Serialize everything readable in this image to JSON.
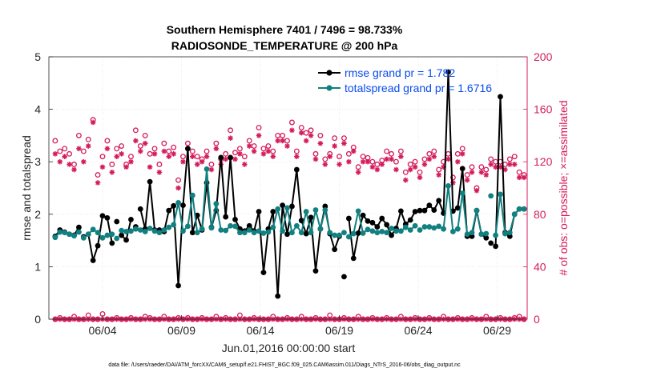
{
  "chart_data": {
    "type": "line",
    "title_line1": "Southern Hemisphere 7401 / 7496 = 98.733%",
    "title_line2": "RADIOSONDE_TEMPERATURE @ 200 hPa",
    "ylabel_left": "rmse and totalspread",
    "ylabel_right": "# of obs: o=possible; ×=assimilated",
    "xlabel": "Jun.01,2016 00:00:00 start",
    "footnote": "data file: /Users/raeder/DAI/ATM_forcXX/CAM6_setup/f.e21.FHIST_BGC.f09_025.CAM6assim.011/Diags_NTrS_2016-06/obs_diag_output.nc",
    "ylim_left": [
      0,
      5
    ],
    "ylim_right": [
      0,
      200
    ],
    "xlim": [
      0.6,
      30.9
    ],
    "yticks_left": [
      "0",
      "1",
      "2",
      "3",
      "4",
      "5"
    ],
    "yticks_right": [
      "0",
      "40",
      "80",
      "120",
      "160",
      "200"
    ],
    "x_ticks": [
      {
        "day": 4,
        "label": "06/04"
      },
      {
        "day": 9,
        "label": "06/09"
      },
      {
        "day": 14,
        "label": "06/14"
      },
      {
        "day": 19,
        "label": "06/19"
      },
      {
        "day": 24,
        "label": "06/24"
      },
      {
        "day": 29,
        "label": "06/29"
      }
    ],
    "colors": {
      "rmse": "#000000",
      "spread": "#118080",
      "obs": "#d41c5c"
    },
    "series": [
      {
        "name": "rmse grand pr = 1.782",
        "key": "rmse",
        "values": [
          1.58,
          1.7,
          1.66,
          1.62,
          1.6,
          1.75,
          1.57,
          1.62,
          1.12,
          1.4,
          1.97,
          1.93,
          1.45,
          1.86,
          1.6,
          1.51,
          1.9,
          1.76,
          2.1,
          1.72,
          2.62,
          1.7,
          1.7,
          1.67,
          2.07,
          2.16,
          0.64,
          2.17,
          3.25,
          1.65,
          1.98,
          1.7,
          2.6,
          1.75,
          2.07,
          3.08,
          1.95,
          3.08,
          1.9,
          1.72,
          1.68,
          1.78,
          1.68,
          2.05,
          0.89,
          1.72,
          2.05,
          0.44,
          2.17,
          1.62,
          2.15,
          2.85,
          1.88,
          1.63,
          1.94,
          0.92,
          1.72,
          2.15,
          1.63,
          1.33,
          1.58,
          0.81,
          1.92,
          1.16,
          1.64,
          1.98,
          1.87,
          1.84,
          1.76,
          1.92,
          1.8,
          1.6,
          1.73,
          2.06,
          1.81,
          1.89,
          2.05,
          2.07,
          2.07,
          2.17,
          2.08,
          2.26,
          2.02,
          4.71,
          2.06,
          2.12,
          2.87,
          1.58,
          1.58,
          2.07,
          1.62,
          1.55,
          1.45,
          1.39,
          4.24,
          1.65,
          1.58,
          2.0,
          2.1,
          2.1
        ],
        "gaps": [
          6,
          13,
          17,
          61,
          77,
          92
        ]
      },
      {
        "name": "totalspread grand pr = 1.6716",
        "key": "spread",
        "values": [
          1.56,
          1.66,
          1.65,
          1.62,
          1.59,
          1.66,
          1.55,
          1.62,
          1.71,
          1.65,
          1.55,
          1.6,
          1.62,
          1.54,
          1.69,
          1.67,
          1.68,
          1.72,
          1.7,
          1.67,
          1.73,
          1.68,
          1.65,
          1.7,
          1.75,
          1.8,
          2.22,
          1.68,
          1.77,
          2.36,
          1.65,
          1.72,
          2.86,
          1.74,
          2.2,
          1.7,
          1.69,
          1.78,
          1.77,
          1.65,
          1.65,
          1.7,
          1.65,
          1.68,
          1.64,
          1.66,
          1.75,
          2.1,
          1.68,
          2.12,
          1.65,
          1.78,
          1.65,
          2.05,
          1.65,
          2.08,
          1.72,
          2.08,
          1.65,
          1.6,
          1.6,
          1.65,
          1.57,
          1.63,
          2.06,
          1.64,
          1.71,
          1.68,
          1.65,
          1.67,
          1.65,
          1.73,
          1.68,
          1.68,
          1.75,
          1.7,
          1.78,
          1.7,
          1.76,
          1.76,
          1.74,
          1.77,
          1.72,
          2.54,
          1.67,
          1.72,
          2.4,
          1.62,
          1.65,
          2.07,
          1.62,
          1.63,
          2.35,
          1.6,
          2.38,
          1.63,
          1.65,
          2.0,
          2.1,
          2.1
        ],
        "gaps": [
          6,
          13,
          17,
          61,
          77,
          92
        ]
      }
    ],
    "obs_possible": [
      136,
      128,
      130,
      126,
      118,
      140,
      128,
      137,
      152,
      110,
      124,
      136,
      118,
      130,
      132,
      118,
      124,
      144,
      132,
      140,
      126,
      130,
      118,
      134,
      128,
      131,
      106,
      124,
      134,
      128,
      124,
      122,
      128,
      118,
      134,
      122,
      126,
      144,
      127,
      130,
      124,
      136,
      132,
      146,
      130,
      132,
      128,
      140,
      140,
      136,
      150,
      128,
      146,
      142,
      144,
      126,
      140,
      122,
      126,
      138,
      124,
      138,
      126,
      131,
      116,
      124,
      123,
      120,
      118,
      121,
      128,
      126,
      120,
      128,
      112,
      118,
      120,
      112,
      122,
      126,
      128,
      114,
      120,
      126,
      108,
      126,
      130,
      110,
      116,
      100,
      116,
      114,
      122,
      120,
      120,
      118,
      122,
      124,
      112,
      110
    ],
    "obs_assimilated": [
      126,
      120,
      124,
      118,
      114,
      130,
      120,
      132,
      150,
      104,
      116,
      130,
      112,
      124,
      126,
      116,
      120,
      136,
      128,
      134,
      116,
      126,
      112,
      128,
      124,
      126,
      100,
      120,
      130,
      124,
      118,
      120,
      124,
      114,
      130,
      118,
      122,
      138,
      122,
      126,
      118,
      132,
      128,
      140,
      126,
      128,
      124,
      136,
      136,
      132,
      144,
      124,
      142,
      136,
      140,
      122,
      134,
      118,
      124,
      132,
      118,
      134,
      120,
      128,
      112,
      120,
      120,
      116,
      114,
      118,
      122,
      122,
      114,
      124,
      106,
      114,
      116,
      108,
      118,
      122,
      124,
      110,
      116,
      122,
      104,
      120,
      126,
      106,
      112,
      98,
      112,
      110,
      118,
      116,
      116,
      114,
      118,
      118,
      108,
      108
    ],
    "obs_bottom_possible": [
      0,
      1,
      0,
      0,
      2,
      0,
      0,
      3,
      0,
      0,
      4,
      0,
      0,
      1,
      0,
      0,
      1,
      0,
      0,
      2,
      1,
      0,
      0,
      2,
      0,
      0,
      1,
      0,
      1,
      0,
      0,
      1,
      0,
      0,
      2,
      0,
      1,
      0,
      0,
      3,
      0,
      0,
      1,
      0,
      0,
      0,
      2,
      0,
      0,
      1,
      0,
      0,
      2,
      0,
      0,
      1,
      0,
      0,
      3,
      0,
      0,
      1,
      0,
      0,
      2,
      0,
      0,
      1,
      0,
      0,
      1,
      0,
      0,
      2,
      0,
      0,
      1,
      0,
      0,
      1,
      0,
      0,
      2,
      0,
      0,
      1,
      0,
      0,
      1,
      0,
      0,
      2,
      0,
      0,
      1,
      0,
      0,
      1,
      2,
      0
    ]
  }
}
